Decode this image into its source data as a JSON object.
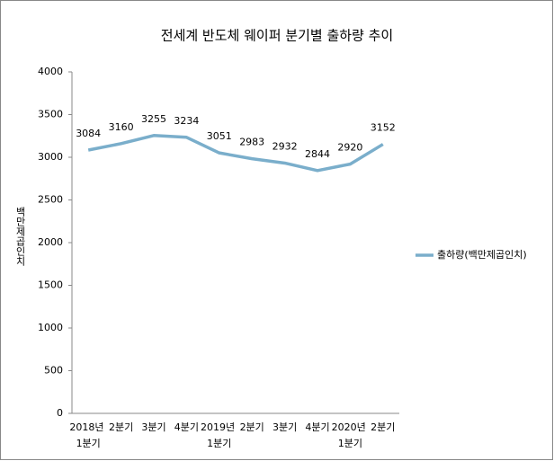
{
  "chart_data": {
    "type": "line",
    "title": "전세계 반도체 웨이퍼 분기별 출하량 추이",
    "y_label": "백만제곱인치",
    "categories": [
      "2018년 1분기",
      "2분기",
      "3분기",
      "4분기",
      "2019년 1분기",
      "2분기",
      "3분기",
      "4분기",
      "2020년 1분기",
      "2분기"
    ],
    "series": [
      {
        "name": "출하량(백만제곱인치)",
        "color": "#7aaecb",
        "values": [
          3084,
          3160,
          3255,
          3234,
          3051,
          2983,
          2932,
          2844,
          2920,
          3152
        ]
      }
    ],
    "ylim": [
      0,
      4000
    ],
    "yticks": [
      0,
      500,
      1000,
      1500,
      2000,
      2500,
      3000,
      3500,
      4000
    ],
    "grid": false,
    "legend": "right"
  }
}
